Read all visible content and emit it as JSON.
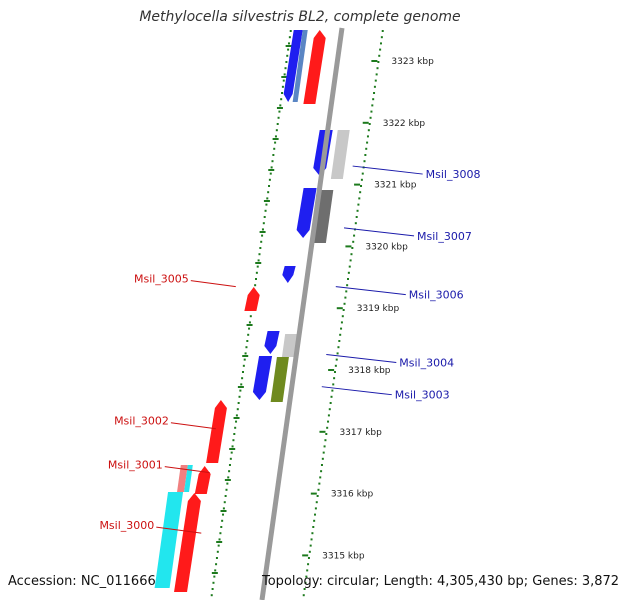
{
  "title": "Methylocella silvestris BL2, complete genome",
  "footer": {
    "accession": "Accession: NC_011666",
    "topology": "Topology: circular; Length: 4,305,430 bp; Genes: 3,872"
  },
  "colors": {
    "backbone": "#9a9a9a",
    "ruler": "#1d7a1d",
    "forward_label": "#cc1111",
    "reverse_label": "#1a1aaa",
    "blue": "#1f1ff0",
    "red": "#ff1a1a",
    "cyan": "#22e6ee",
    "light_gray": "#c8c8c8",
    "dark_gray": "#6e6e6e",
    "olive": "#6f8a1f",
    "steel_blue": "#5a86c4",
    "salmon": "#f08080"
  },
  "ruler_kbp": [
    {
      "kbp": 3323,
      "label": "3323 kbp"
    },
    {
      "kbp": 3322,
      "label": "3322 kbp"
    },
    {
      "kbp": 3321,
      "label": "3321 kbp"
    },
    {
      "kbp": 3320,
      "label": "3320 kbp"
    },
    {
      "kbp": 3319,
      "label": "3319 kbp"
    },
    {
      "kbp": 3318,
      "label": "3318 kbp"
    },
    {
      "kbp": 3317,
      "label": "3317 kbp"
    },
    {
      "kbp": 3316,
      "label": "3316 kbp"
    },
    {
      "kbp": 3315,
      "label": "3315 kbp"
    }
  ],
  "gene_labels": [
    {
      "name": "Msil_3008",
      "strand": "reverse",
      "kbp": 3321.3
    },
    {
      "name": "Msil_3007",
      "strand": "reverse",
      "kbp": 3320.3
    },
    {
      "name": "Msil_3006",
      "strand": "reverse",
      "kbp": 3319.35
    },
    {
      "name": "Msil_3005",
      "strand": "forward",
      "kbp": 3319.35
    },
    {
      "name": "Msil_3004",
      "strand": "reverse",
      "kbp": 3318.25
    },
    {
      "name": "Msil_3003",
      "strand": "reverse",
      "kbp": 3317.73
    },
    {
      "name": "Msil_3002",
      "strand": "forward",
      "kbp": 3317.05
    },
    {
      "name": "Msil_3001",
      "strand": "forward",
      "kbp": 3316.34
    },
    {
      "name": "Msil_3000",
      "strand": "forward",
      "kbp": 3315.36
    }
  ]
}
